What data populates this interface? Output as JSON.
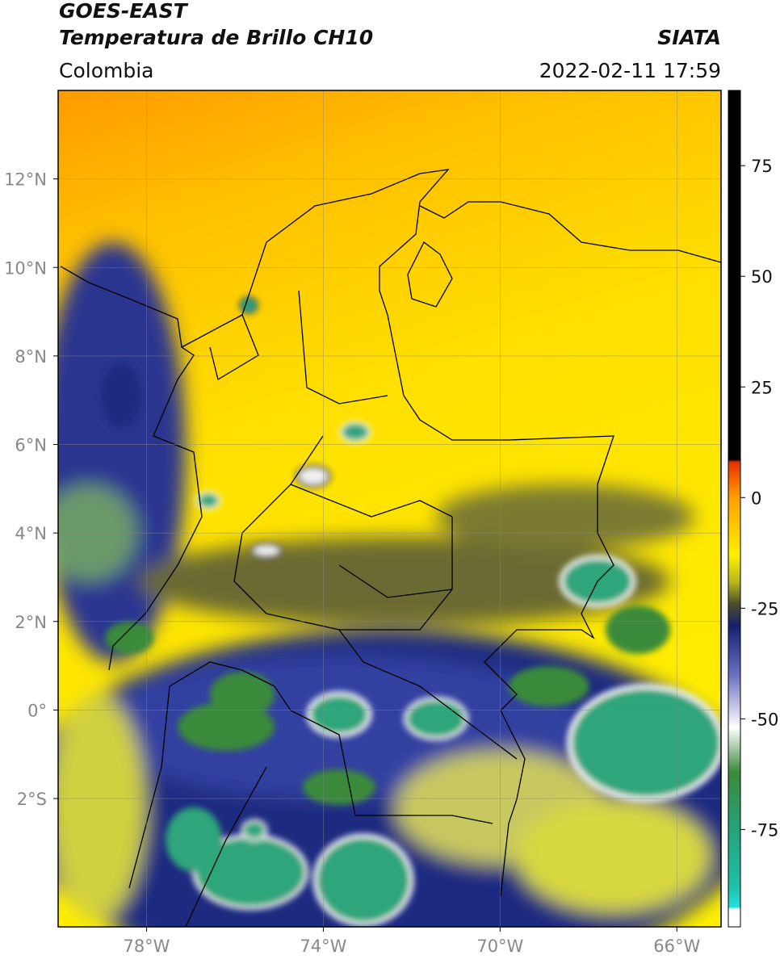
{
  "header": {
    "title": "GOES-EAST",
    "subtitle": "Temperatura de Brillo CH10",
    "source": "SIATA",
    "region": "Colombia",
    "timestamp": "2022-02-11 17:59"
  },
  "map": {
    "xlim": [
      -80,
      -65
    ],
    "ylim": [
      -4.9,
      14
    ],
    "xticks": [
      {
        "value": -78,
        "label": "78°W"
      },
      {
        "value": -74,
        "label": "74°W"
      },
      {
        "value": -70,
        "label": "70°W"
      },
      {
        "value": -66,
        "label": "66°W"
      }
    ],
    "yticks": [
      {
        "value": 12,
        "label": "12°N"
      },
      {
        "value": 10,
        "label": "10°N"
      },
      {
        "value": 8,
        "label": "8°N"
      },
      {
        "value": 6,
        "label": "6°N"
      },
      {
        "value": 4,
        "label": "4°N"
      },
      {
        "value": 2,
        "label": "2°N"
      },
      {
        "value": 0,
        "label": "0°"
      },
      {
        "value": -2,
        "label": "2°S"
      }
    ],
    "grid": true
  },
  "colorbar": {
    "lim": [
      -97,
      92
    ],
    "ticks": [
      75,
      50,
      25,
      0,
      -25,
      -50,
      -75
    ],
    "stops": [
      {
        "value": -97,
        "color": "#ffffff"
      },
      {
        "value": -93,
        "color": "#ffffff"
      },
      {
        "value": -92.5,
        "color": "#22e0e0"
      },
      {
        "value": -88,
        "color": "#1fbfa8"
      },
      {
        "value": -75,
        "color": "#25a37a"
      },
      {
        "value": -62,
        "color": "#3a8a3a"
      },
      {
        "value": -52,
        "color": "#ffffff"
      },
      {
        "value": -40,
        "color": "#6a70c0"
      },
      {
        "value": -29,
        "color": "#14206e"
      },
      {
        "value": -24,
        "color": "#4e4e2a"
      },
      {
        "value": -19,
        "color": "#b8b820"
      },
      {
        "value": -13,
        "color": "#fff000"
      },
      {
        "value": 0,
        "color": "#ffa000"
      },
      {
        "value": 8,
        "color": "#e83000"
      },
      {
        "value": 8.6,
        "color": "#000000"
      },
      {
        "value": 92,
        "color": "#000000"
      }
    ]
  }
}
